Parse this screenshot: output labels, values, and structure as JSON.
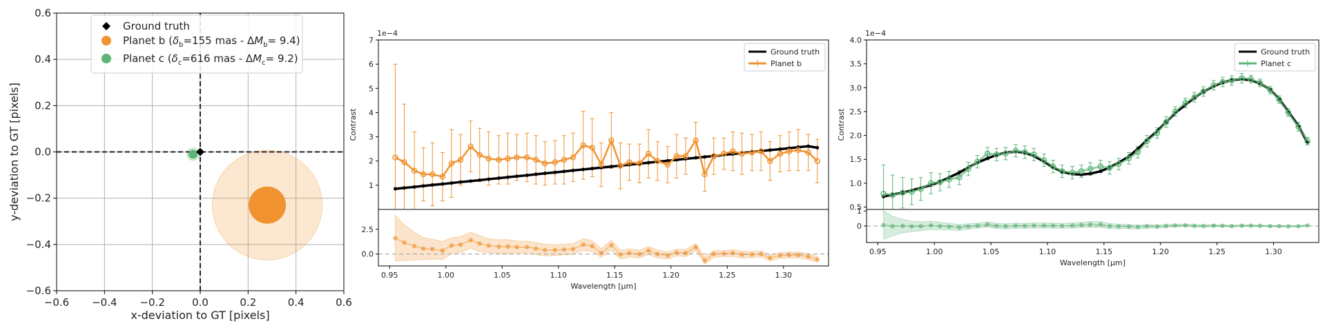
{
  "chart_data": [
    {
      "type": "scatter",
      "xlabel": "x-deviation to GT [pixels]",
      "ylabel": "y-deviation to GT [pixels]",
      "xlim": [
        -0.6,
        0.6
      ],
      "ylim": [
        -0.6,
        0.6
      ],
      "xticks": [
        "−0.6",
        "−0.4",
        "−0.2",
        "0.0",
        "0.2",
        "0.4",
        "0.6"
      ],
      "yticks": [
        "−0.6",
        "−0.4",
        "−0.2",
        "0.0",
        "0.2",
        "0.4",
        "0.6"
      ],
      "grid": true,
      "legend_position": "top-center",
      "series": [
        {
          "name": "Ground truth",
          "color": "#000000",
          "marker": "diamond",
          "x": 0.0,
          "y": 0.0
        },
        {
          "name": "Planet b",
          "name_main": "Planet b (",
          "name_delta": "δ",
          "name_delta_sub": "b",
          "name_mid": "=155 mas - Δ",
          "name_m": "M",
          "name_m_sub": "b",
          "name_end": "= 9.4)",
          "color": "#f0922f",
          "x": 0.28,
          "y": -0.23,
          "error_radius": 0.23
        },
        {
          "name": "Planet c",
          "name_main": "Planet c (",
          "name_delta": "δ",
          "name_delta_sub": "c",
          "name_mid": "=616 mas - Δ",
          "name_m": "M",
          "name_m_sub": "c",
          "name_end": "= 9.2)",
          "color": "#5cb577",
          "x": -0.03,
          "y": -0.01,
          "error_radius": 0.028
        }
      ]
    },
    {
      "type": "line",
      "ylabel": "Contrast",
      "xlabel": "Wavelength [μm]",
      "scale_label": "1e−4",
      "ylim": [
        0,
        7
      ],
      "yticks": [
        "1",
        "2",
        "3",
        "4",
        "5",
        "6",
        "7"
      ],
      "xlim": [
        0.94,
        1.34
      ],
      "xticks": [
        "0.95",
        "1.00",
        "1.05",
        "1.10",
        "1.15",
        "1.20",
        "1.25",
        "1.30"
      ],
      "legend_position": "top-right",
      "series": [
        {
          "name": "Ground truth",
          "color": "#000000"
        },
        {
          "name": "Planet b",
          "color": "#f0922f"
        }
      ],
      "x": [
        0.955,
        0.963,
        0.972,
        0.98,
        0.988,
        0.997,
        1.005,
        1.013,
        1.022,
        1.03,
        1.038,
        1.047,
        1.055,
        1.063,
        1.072,
        1.08,
        1.088,
        1.097,
        1.105,
        1.113,
        1.122,
        1.13,
        1.138,
        1.147,
        1.155,
        1.163,
        1.172,
        1.18,
        1.188,
        1.197,
        1.205,
        1.213,
        1.222,
        1.23,
        1.238,
        1.247,
        1.255,
        1.263,
        1.272,
        1.28,
        1.288,
        1.297,
        1.305,
        1.313,
        1.322,
        1.33
      ],
      "ground_truth": [
        0.85,
        0.89,
        0.93,
        0.97,
        1.01,
        1.05,
        1.09,
        1.13,
        1.17,
        1.21,
        1.25,
        1.29,
        1.33,
        1.37,
        1.41,
        1.45,
        1.49,
        1.53,
        1.57,
        1.61,
        1.65,
        1.69,
        1.73,
        1.77,
        1.81,
        1.85,
        1.89,
        1.93,
        1.97,
        2.01,
        2.05,
        2.09,
        2.13,
        2.17,
        2.21,
        2.25,
        2.29,
        2.33,
        2.37,
        2.41,
        2.45,
        2.49,
        2.53,
        2.57,
        2.61,
        2.55
      ],
      "estimate": [
        2.15,
        1.95,
        1.6,
        1.45,
        1.45,
        1.35,
        1.9,
        2.05,
        2.6,
        2.25,
        2.1,
        2.05,
        2.1,
        2.15,
        2.15,
        2.05,
        1.9,
        1.95,
        2.05,
        2.15,
        2.65,
        2.55,
        1.85,
        2.85,
        1.8,
        1.95,
        1.9,
        2.3,
        2.0,
        1.85,
        2.2,
        2.2,
        2.85,
        1.45,
        2.2,
        2.3,
        2.4,
        2.3,
        2.35,
        2.4,
        2.0,
        2.3,
        2.4,
        2.45,
        2.35,
        2.0
      ],
      "error": [
        3.85,
        2.4,
        1.6,
        1.1,
        1.3,
        1.0,
        1.4,
        1.05,
        1.05,
        1.1,
        1.1,
        1.0,
        1.05,
        0.95,
        1.0,
        1.0,
        0.9,
        0.9,
        1.0,
        1.0,
        1.4,
        1.2,
        0.9,
        1.15,
        0.95,
        0.75,
        0.8,
        1.0,
        0.8,
        0.75,
        0.9,
        0.75,
        0.75,
        0.7,
        0.75,
        0.65,
        0.8,
        0.85,
        0.75,
        0.8,
        0.8,
        0.75,
        0.8,
        0.85,
        0.75,
        0.9
      ],
      "residual_yticks": [
        "0.0",
        "2.5"
      ],
      "residual_ylim": [
        -1.2,
        4.5
      ],
      "residual": [
        1.6,
        1.15,
        0.8,
        0.55,
        0.5,
        0.35,
        0.85,
        0.95,
        1.4,
        1.05,
        0.85,
        0.75,
        0.75,
        0.7,
        0.7,
        0.55,
        0.4,
        0.4,
        0.45,
        0.5,
        0.95,
        0.8,
        0.1,
        0.9,
        -0.05,
        0.1,
        0.0,
        0.35,
        0.0,
        -0.15,
        0.15,
        0.1,
        0.7,
        -0.65,
        0.0,
        0.05,
        0.1,
        -0.05,
        -0.05,
        0.0,
        -0.4,
        -0.15,
        -0.1,
        -0.1,
        -0.25,
        -0.55
      ],
      "residual_band": [
        2.3,
        1.8,
        1.4,
        1.1,
        1.0,
        0.9,
        0.8,
        0.8,
        0.8,
        0.8,
        0.7,
        0.7,
        0.7,
        0.6,
        0.6,
        0.6,
        0.6,
        0.55,
        0.55,
        0.55,
        0.6,
        0.55,
        0.45,
        0.5,
        0.45,
        0.4,
        0.4,
        0.4,
        0.4,
        0.35,
        0.35,
        0.35,
        0.35,
        0.35,
        0.35,
        0.3,
        0.35,
        0.35,
        0.3,
        0.3,
        0.3,
        0.3,
        0.3,
        0.3,
        0.3,
        0.3
      ]
    },
    {
      "type": "line",
      "ylabel": "Contrast",
      "xlabel": "Wavelength [μm]",
      "scale_label": "1e−4",
      "ylim": [
        0.45,
        4.0
      ],
      "yticks": [
        "0.5",
        "1.0",
        "1.5",
        "2.0",
        "2.5",
        "3.0",
        "3.5",
        "4.0"
      ],
      "xlim": [
        0.94,
        1.34
      ],
      "xticks": [
        "0.95",
        "1.00",
        "1.05",
        "1.10",
        "1.15",
        "1.20",
        "1.25",
        "1.30"
      ],
      "legend_position": "top-right",
      "series": [
        {
          "name": "Ground truth",
          "color": "#000000"
        },
        {
          "name": "Planet c",
          "color": "#5cb577"
        }
      ],
      "x": [
        0.955,
        0.963,
        0.972,
        0.98,
        0.988,
        0.997,
        1.005,
        1.013,
        1.022,
        1.03,
        1.038,
        1.047,
        1.055,
        1.063,
        1.072,
        1.08,
        1.088,
        1.097,
        1.105,
        1.113,
        1.122,
        1.13,
        1.138,
        1.147,
        1.155,
        1.163,
        1.172,
        1.18,
        1.188,
        1.197,
        1.205,
        1.213,
        1.222,
        1.23,
        1.238,
        1.247,
        1.255,
        1.263,
        1.272,
        1.28,
        1.288,
        1.297,
        1.305,
        1.313,
        1.322,
        1.33
      ],
      "ground_truth": [
        0.72,
        0.76,
        0.8,
        0.85,
        0.9,
        0.96,
        1.03,
        1.12,
        1.22,
        1.33,
        1.43,
        1.52,
        1.59,
        1.64,
        1.66,
        1.64,
        1.57,
        1.45,
        1.33,
        1.24,
        1.19,
        1.18,
        1.2,
        1.25,
        1.33,
        1.43,
        1.56,
        1.72,
        1.9,
        2.09,
        2.28,
        2.47,
        2.64,
        2.79,
        2.92,
        3.03,
        3.11,
        3.16,
        3.18,
        3.16,
        3.09,
        2.96,
        2.76,
        2.5,
        2.2,
        1.85
      ],
      "estimate": [
        0.78,
        0.75,
        0.8,
        0.82,
        0.88,
        1.0,
        1.02,
        1.08,
        1.12,
        1.3,
        1.45,
        1.62,
        1.6,
        1.62,
        1.68,
        1.65,
        1.6,
        1.48,
        1.35,
        1.25,
        1.22,
        1.25,
        1.3,
        1.35,
        1.32,
        1.4,
        1.52,
        1.65,
        1.88,
        2.05,
        2.28,
        2.5,
        2.68,
        2.8,
        2.92,
        3.05,
        3.12,
        3.15,
        3.2,
        3.18,
        3.1,
        2.95,
        2.75,
        2.48,
        2.18,
        1.88
      ],
      "error": [
        0.6,
        0.42,
        0.32,
        0.27,
        0.24,
        0.22,
        0.18,
        0.17,
        0.15,
        0.14,
        0.13,
        0.13,
        0.13,
        0.13,
        0.13,
        0.13,
        0.13,
        0.13,
        0.13,
        0.13,
        0.13,
        0.13,
        0.13,
        0.13,
        0.13,
        0.12,
        0.12,
        0.12,
        0.12,
        0.11,
        0.11,
        0.1,
        0.1,
        0.1,
        0.1,
        0.1,
        0.1,
        0.1,
        0.1,
        0.08,
        0.08,
        0.08,
        0.08,
        0.08,
        0.09,
        0.08
      ],
      "residual_yticks": [
        "0",
        "1"
      ],
      "residual_ylim": [
        -1.1,
        1.1
      ],
      "residual": [
        0.06,
        -0.01,
        0.0,
        -0.03,
        -0.02,
        0.04,
        -0.01,
        -0.04,
        -0.1,
        -0.03,
        0.02,
        0.1,
        0.01,
        -0.02,
        0.02,
        0.01,
        0.03,
        0.03,
        0.02,
        0.01,
        0.03,
        0.07,
        0.1,
        0.1,
        -0.01,
        -0.03,
        -0.04,
        -0.07,
        -0.02,
        -0.04,
        0.0,
        0.03,
        0.04,
        0.01,
        0.0,
        0.02,
        0.01,
        -0.01,
        0.02,
        0.02,
        0.01,
        -0.01,
        -0.01,
        -0.02,
        -0.02,
        0.03
      ],
      "residual_band": [
        0.95,
        0.65,
        0.45,
        0.35,
        0.3,
        0.28,
        0.25,
        0.22,
        0.2,
        0.18,
        0.17,
        0.17,
        0.17,
        0.17,
        0.17,
        0.17,
        0.17,
        0.17,
        0.17,
        0.17,
        0.17,
        0.17,
        0.2,
        0.2,
        0.17,
        0.15,
        0.14,
        0.13,
        0.12,
        0.11,
        0.1,
        0.09,
        0.08,
        0.08,
        0.07,
        0.07,
        0.06,
        0.06,
        0.06,
        0.05,
        0.05,
        0.05,
        0.05,
        0.05,
        0.05,
        0.05
      ]
    }
  ]
}
